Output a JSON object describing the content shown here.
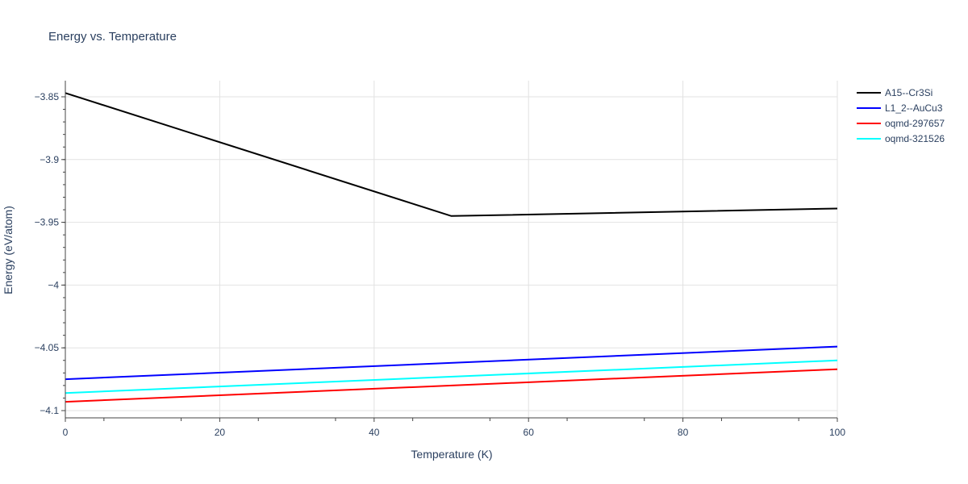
{
  "chart_data": {
    "type": "line",
    "title": "Energy vs. Temperature",
    "xlabel": "Temperature (K)",
    "ylabel": "Energy (eV/atom)",
    "xlim": [
      0,
      100
    ],
    "ylim": [
      -4.1,
      -3.85
    ],
    "x_ticks": [
      0,
      20,
      40,
      60,
      80,
      100
    ],
    "x_tick_labels": [
      "0",
      "20",
      "40",
      "60",
      "80",
      "100"
    ],
    "y_ticks": [
      -3.85,
      -3.9,
      -3.95,
      -4.0,
      -4.05,
      -4.1
    ],
    "y_tick_labels": [
      "−3.85",
      "−3.9",
      "−3.95",
      "−4",
      "−4.05",
      "−4.1"
    ],
    "grid": true,
    "legend_position": "top-right",
    "series": [
      {
        "name": "A15--Cr3Si",
        "color": "#000000",
        "x": [
          0,
          50,
          100
        ],
        "y": [
          -3.847,
          -3.945,
          -3.939
        ]
      },
      {
        "name": "L1_2--AuCu3",
        "color": "#0000ff",
        "x": [
          0,
          100
        ],
        "y": [
          -4.075,
          -4.049
        ]
      },
      {
        "name": "oqmd-297657",
        "color": "#ff0000",
        "x": [
          0,
          100
        ],
        "y": [
          -4.093,
          -4.067
        ]
      },
      {
        "name": "oqmd-321526",
        "color": "#00ffff",
        "x": [
          0,
          100
        ],
        "y": [
          -4.086,
          -4.06
        ]
      }
    ]
  }
}
